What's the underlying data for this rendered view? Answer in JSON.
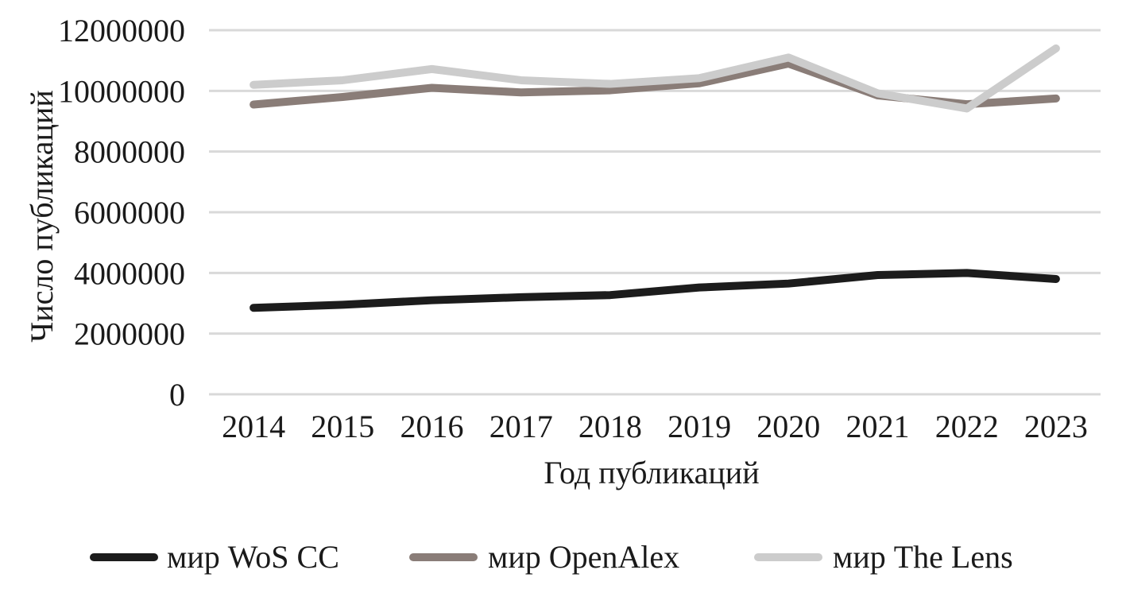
{
  "chart_data": {
    "type": "line",
    "title": "",
    "xlabel": "Год публикаций",
    "ylabel": "Число публикаций",
    "categories": [
      "2014",
      "2015",
      "2016",
      "2017",
      "2018",
      "2019",
      "2020",
      "2021",
      "2022",
      "2023"
    ],
    "ylim": [
      0,
      12000000
    ],
    "yticks": [
      "0",
      "2000000",
      "4000000",
      "6000000",
      "8000000",
      "10000000",
      "12000000"
    ],
    "grid": "horizontal",
    "legend_position": "bottom",
    "series": [
      {
        "name": "мир WoS CC",
        "color": "#1c1c1c",
        "values": [
          2850000,
          2950000,
          3100000,
          3200000,
          3270000,
          3520000,
          3650000,
          3930000,
          4000000,
          3800000
        ]
      },
      {
        "name": "мир OpenAlex",
        "color": "#8a7d78",
        "values": [
          9550000,
          9800000,
          10100000,
          9950000,
          10020000,
          10250000,
          10900000,
          9850000,
          9560000,
          9750000
        ]
      },
      {
        "name": "мир The Lens",
        "color": "#cccccc",
        "values": [
          10200000,
          10350000,
          10720000,
          10350000,
          10230000,
          10420000,
          11100000,
          9920000,
          9420000,
          11400000
        ]
      }
    ]
  }
}
